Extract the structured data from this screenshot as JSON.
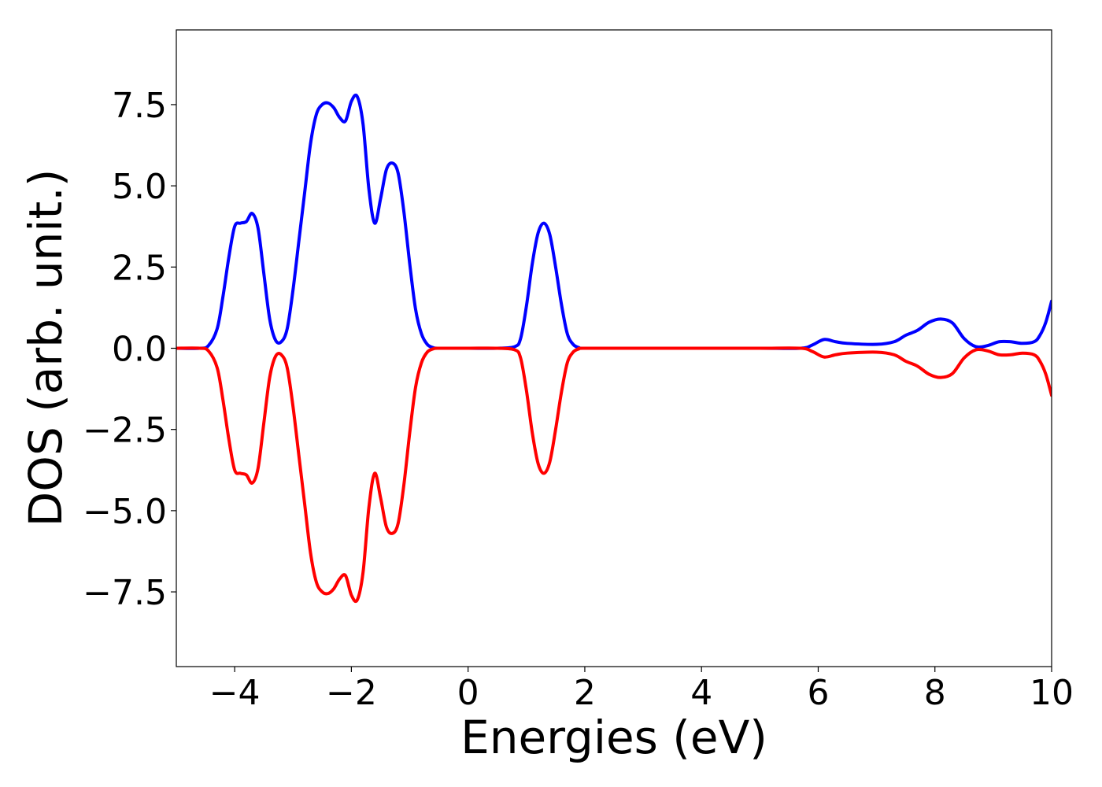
{
  "chart_data": {
    "type": "line",
    "title": "",
    "xlabel": "Energies (eV)",
    "ylabel": "DOS (arb. unit.)",
    "xlim": [
      -5,
      10
    ],
    "ylim": [
      -9.8,
      9.8
    ],
    "xticks": [
      -4,
      -2,
      0,
      2,
      4,
      6,
      8,
      10
    ],
    "xtick_labels": [
      "−4",
      "−2",
      "0",
      "2",
      "4",
      "6",
      "8",
      "10"
    ],
    "yticks": [
      7.5,
      5.0,
      2.5,
      0.0,
      -2.5,
      -5.0,
      -7.5
    ],
    "ytick_labels": [
      "7.5",
      "5.0",
      "2.5",
      "0.0",
      "−2.5",
      "−5.0",
      "−7.5"
    ],
    "grid": false,
    "legend": "none",
    "series": [
      {
        "color": "#0000ff",
        "x": [
          -5.0,
          -4.6,
          -4.45,
          -4.3,
          -4.2,
          -4.1,
          -4.0,
          -3.9,
          -3.8,
          -3.7,
          -3.6,
          -3.5,
          -3.4,
          -3.3,
          -3.2,
          -3.1,
          -3.0,
          -2.9,
          -2.8,
          -2.7,
          -2.6,
          -2.5,
          -2.4,
          -2.3,
          -2.2,
          -2.1,
          -2.0,
          -1.9,
          -1.8,
          -1.7,
          -1.6,
          -1.5,
          -1.4,
          -1.3,
          -1.2,
          -1.1,
          -1.0,
          -0.9,
          -0.8,
          -0.7,
          -0.6,
          -0.5,
          0.0,
          0.5,
          0.8,
          0.9,
          1.0,
          1.1,
          1.2,
          1.3,
          1.4,
          1.5,
          1.6,
          1.7,
          1.8,
          1.9,
          2.0,
          3.0,
          4.0,
          5.0,
          5.7,
          5.9,
          6.1,
          6.3,
          6.5,
          7.0,
          7.3,
          7.5,
          7.7,
          7.9,
          8.1,
          8.3,
          8.5,
          8.7,
          8.9,
          9.1,
          9.3,
          9.5,
          9.7,
          9.8,
          9.9,
          10.0
        ],
        "y": [
          0.0,
          0.0,
          0.08,
          0.6,
          1.6,
          2.8,
          3.75,
          3.85,
          3.9,
          4.15,
          3.7,
          2.3,
          0.9,
          0.25,
          0.2,
          0.6,
          1.8,
          3.3,
          4.8,
          6.3,
          7.2,
          7.5,
          7.55,
          7.4,
          7.1,
          7.0,
          7.6,
          7.75,
          6.9,
          4.9,
          3.85,
          4.6,
          5.5,
          5.7,
          5.4,
          4.2,
          2.6,
          1.2,
          0.45,
          0.12,
          0.02,
          0.0,
          0.0,
          0.0,
          0.05,
          0.3,
          1.3,
          2.6,
          3.55,
          3.85,
          3.5,
          2.5,
          1.35,
          0.45,
          0.12,
          0.02,
          0.0,
          0.0,
          0.0,
          0.0,
          0.0,
          0.1,
          0.27,
          0.2,
          0.15,
          0.12,
          0.2,
          0.4,
          0.55,
          0.8,
          0.9,
          0.78,
          0.3,
          0.05,
          0.08,
          0.2,
          0.2,
          0.15,
          0.2,
          0.4,
          0.8,
          1.45
        ]
      },
      {
        "color": "#ff0000",
        "x": [
          -5.0,
          -4.6,
          -4.45,
          -4.3,
          -4.2,
          -4.1,
          -4.0,
          -3.9,
          -3.8,
          -3.7,
          -3.6,
          -3.5,
          -3.4,
          -3.3,
          -3.2,
          -3.1,
          -3.0,
          -2.9,
          -2.8,
          -2.7,
          -2.6,
          -2.5,
          -2.4,
          -2.3,
          -2.2,
          -2.1,
          -2.0,
          -1.9,
          -1.8,
          -1.7,
          -1.6,
          -1.5,
          -1.4,
          -1.3,
          -1.2,
          -1.1,
          -1.0,
          -0.9,
          -0.8,
          -0.7,
          -0.6,
          -0.5,
          0.0,
          0.5,
          0.8,
          0.9,
          1.0,
          1.1,
          1.2,
          1.3,
          1.4,
          1.5,
          1.6,
          1.7,
          1.8,
          1.9,
          2.0,
          3.0,
          4.0,
          5.0,
          5.7,
          5.9,
          6.1,
          6.3,
          6.5,
          7.0,
          7.3,
          7.5,
          7.7,
          7.9,
          8.1,
          8.3,
          8.5,
          8.7,
          8.9,
          9.1,
          9.3,
          9.5,
          9.7,
          9.8,
          9.9,
          10.0
        ],
        "y": [
          0.0,
          0.0,
          -0.08,
          -0.6,
          -1.6,
          -2.8,
          -3.75,
          -3.85,
          -3.9,
          -4.15,
          -3.7,
          -2.3,
          -0.9,
          -0.25,
          -0.2,
          -0.6,
          -1.8,
          -3.3,
          -4.8,
          -6.3,
          -7.2,
          -7.5,
          -7.55,
          -7.4,
          -7.1,
          -7.0,
          -7.6,
          -7.75,
          -6.9,
          -4.9,
          -3.85,
          -4.6,
          -5.5,
          -5.7,
          -5.4,
          -4.2,
          -2.6,
          -1.2,
          -0.45,
          -0.12,
          -0.02,
          0.0,
          0.0,
          0.0,
          -0.05,
          -0.3,
          -1.3,
          -2.6,
          -3.55,
          -3.85,
          -3.5,
          -2.5,
          -1.35,
          -0.45,
          -0.12,
          -0.02,
          0.0,
          0.0,
          0.0,
          0.0,
          0.0,
          -0.1,
          -0.27,
          -0.2,
          -0.15,
          -0.12,
          -0.2,
          -0.4,
          -0.55,
          -0.8,
          -0.9,
          -0.78,
          -0.3,
          -0.05,
          -0.08,
          -0.2,
          -0.2,
          -0.15,
          -0.2,
          -0.4,
          -0.8,
          -1.45
        ]
      }
    ]
  }
}
